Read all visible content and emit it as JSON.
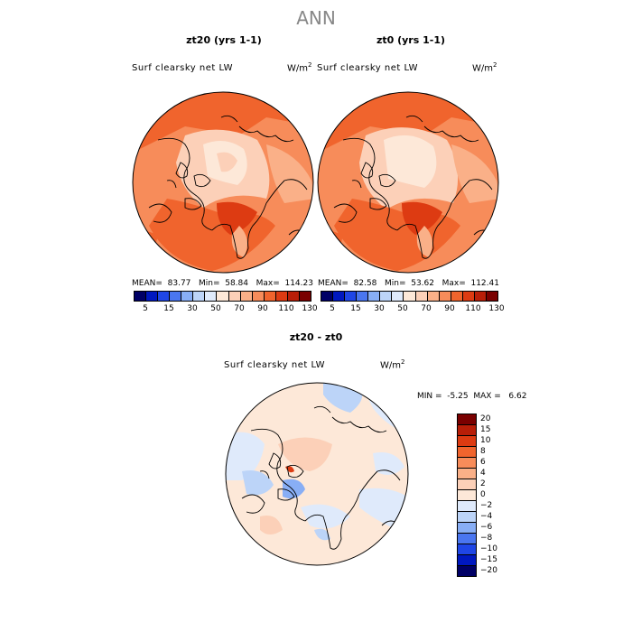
{
  "page_title": "ANN",
  "panels": [
    {
      "title": "zt20 (yrs 1-1)",
      "variable": "Surf clearsky net LW",
      "units_base": "W/m",
      "units_exp": "2",
      "mean_label": "MEAN=",
      "mean": "83.77",
      "min_label": "Min=",
      "min": "58.84",
      "max_label": "Max=",
      "max": "114.23"
    },
    {
      "title": "zt0 (yrs 1-1)",
      "variable": "Surf clearsky net LW",
      "units_base": "W/m",
      "units_exp": "2",
      "mean_label": "MEAN=",
      "mean": "82.58",
      "min_label": "Min=",
      "min": "53.62",
      "max_label": "Max=",
      "max": "112.41"
    }
  ],
  "diff_panel": {
    "title": "zt20 - zt0",
    "variable": "Surf clearsky net LW",
    "units_base": "W/m",
    "units_exp": "2",
    "min_label": "MIN =",
    "min": "-5.25",
    "max_label": "MAX =",
    "max": "6.62"
  },
  "abs_colorbar": {
    "colors": [
      "#000066",
      "#0018c0",
      "#1f46e6",
      "#4a76f0",
      "#88aef5",
      "#bcd4f8",
      "#dfeafb",
      "#fde8d8",
      "#fcd0b8",
      "#fab088",
      "#f78c5a",
      "#f0642d",
      "#dd3b12",
      "#b81e08",
      "#7a0000"
    ],
    "tick_labels": [
      "5",
      "15",
      "30",
      "50",
      "70",
      "90",
      "110",
      "130"
    ]
  },
  "diff_colorbar": {
    "colors": [
      "#7a0000",
      "#b81e08",
      "#dd3b12",
      "#f0642d",
      "#f78c5a",
      "#fab088",
      "#fcd0b8",
      "#fde8d8",
      "#dfeafb",
      "#bcd4f8",
      "#88aef5",
      "#4a76f0",
      "#1f46e6",
      "#0018c0",
      "#000066"
    ],
    "tick_labels": [
      "20",
      "15",
      "10",
      "8",
      "6",
      "4",
      "2",
      "0",
      "−2",
      "−4",
      "−6",
      "−8",
      "−10",
      "−15",
      "−20"
    ]
  },
  "maps": {
    "zt20": "Arctic polar stereographic map, mostly orange-red with pale interior",
    "zt0": "Arctic polar stereographic map, mostly orange-red with pale interior",
    "diff": "Arctic polar stereographic difference map, pale peach and light blue"
  }
}
